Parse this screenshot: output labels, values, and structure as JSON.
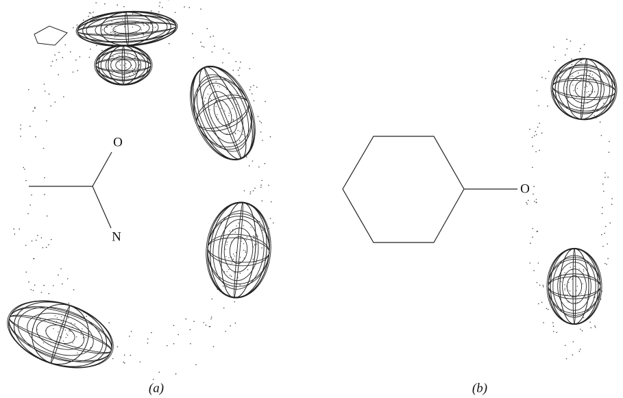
{
  "panels": [
    {
      "label": "(a)",
      "atoms": [
        "O",
        "N"
      ]
    },
    {
      "label": "(b)",
      "atoms": [
        "O"
      ]
    }
  ]
}
